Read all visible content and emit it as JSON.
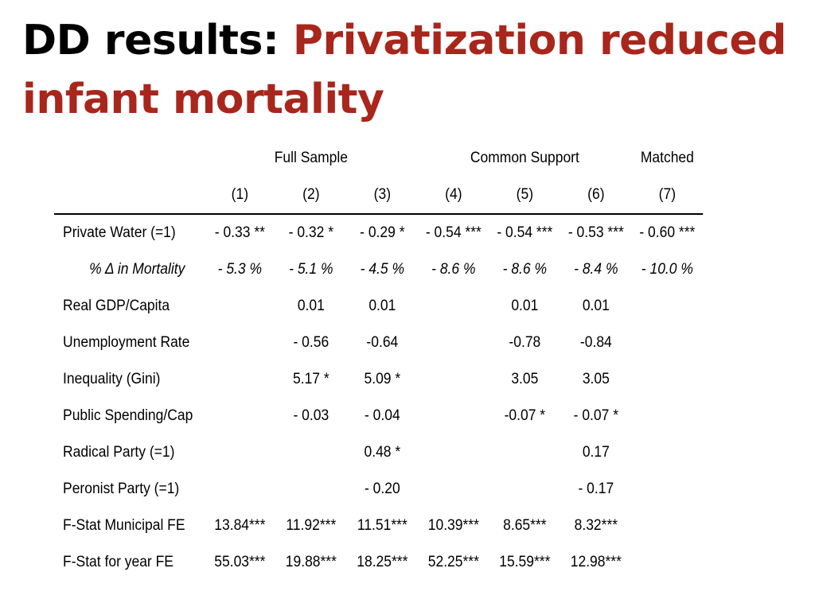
{
  "title": {
    "prefix": "DD results: ",
    "highlight_line1": "Privatization reduced",
    "highlight_line2": "infant mortality",
    "colors": {
      "prefix": "#000000",
      "highlight": "#a8261c"
    }
  },
  "table": {
    "groups": [
      "Full Sample",
      "Common Support",
      "Matched"
    ],
    "columns": [
      "(1)",
      "(2)",
      "(3)",
      "(4)",
      "(5)",
      "(6)",
      "(7)"
    ],
    "rows": [
      {
        "label": "Private Water (=1)",
        "values": [
          "- 0.33 **",
          "- 0.32 *",
          "- 0.29 *",
          "- 0.54 ***",
          "- 0.54 ***",
          "- 0.53 ***",
          "- 0.60 ***"
        ]
      },
      {
        "label": "% Δ in Mortality",
        "values": [
          "- 5.3 %",
          "- 5.1 %",
          "- 4.5 %",
          "- 8.6 %",
          "- 8.6 %",
          "- 8.4 %",
          "- 10.0 %"
        ]
      },
      {
        "label": "Real GDP/Capita",
        "values": [
          "",
          "0.01",
          "0.01",
          "",
          "0.01",
          "0.01",
          ""
        ]
      },
      {
        "label": "Unemployment Rate",
        "values": [
          "",
          "- 0.56",
          "-0.64",
          "",
          "-0.78",
          "-0.84",
          ""
        ]
      },
      {
        "label": "Inequality (Gini)",
        "values": [
          "",
          "5.17 *",
          "5.09 *",
          "",
          "3.05",
          "3.05",
          ""
        ]
      },
      {
        "label": "Public Spending/Cap",
        "values": [
          "",
          "- 0.03",
          "- 0.04",
          "",
          "-0.07 *",
          "- 0.07 *",
          ""
        ]
      },
      {
        "label": "Radical Party (=1)",
        "values": [
          "",
          "",
          "0.48 *",
          "",
          "",
          "0.17",
          ""
        ]
      },
      {
        "label": "Peronist Party (=1)",
        "values": [
          "",
          "",
          "- 0.20",
          "",
          "",
          "- 0.17",
          ""
        ]
      },
      {
        "label": "F-Stat Municipal FE",
        "values": [
          "13.84***",
          "11.92***",
          "11.51***",
          "10.39***",
          "8.65***",
          "8.32***",
          ""
        ]
      },
      {
        "label": "F-Stat for year FE",
        "values": [
          "55.03***",
          "19.88***",
          "18.25***",
          "52.25***",
          "15.59***",
          "12.98***",
          ""
        ]
      }
    ]
  }
}
